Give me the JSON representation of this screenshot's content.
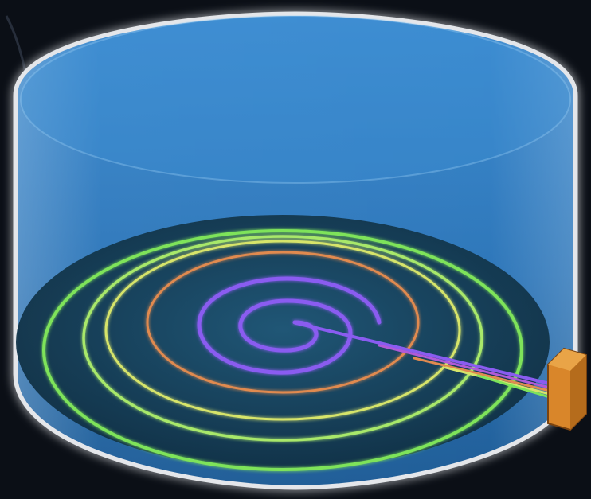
{
  "colors": {
    "background": "#0b0f16",
    "cylinder_outline": "#f2f4f7",
    "cylinder_fill_top": "#2f7fc4",
    "cylinder_fill_bottom": "#1e5f9e",
    "floor_fill": "#163d55",
    "ring_outer": "#7ee35a",
    "ring_middle": "#d6e46a",
    "ring_inner": "#e08a50",
    "spiral": "#8a5cf0",
    "connector_block": "#d9862a"
  },
  "elements": {
    "cylinder": "glass-cylinder",
    "floor": "dark-disc-floor",
    "rings": [
      "green-ring-outer",
      "green-ring",
      "yellow-ring",
      "orange-ring"
    ],
    "spiral": "purple-spiral-waveguide",
    "bus": "multicolor-waveguide-bus",
    "connector": "orange-connector-block"
  }
}
